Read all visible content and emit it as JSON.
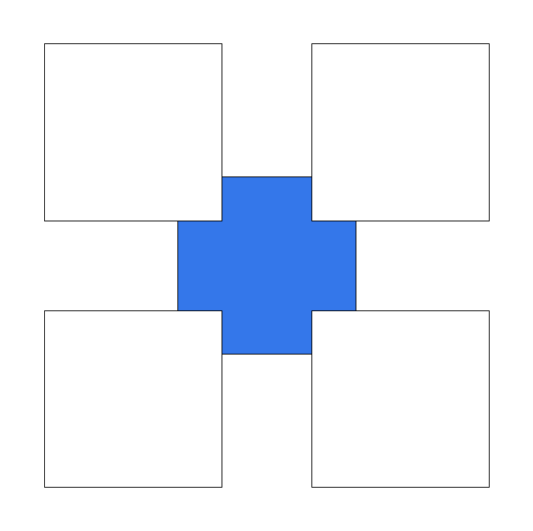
{
  "diagram": {
    "colors": {
      "background": "#ffffff",
      "center_fill": "#3477ea",
      "square_fill": "#ffffff",
      "stroke": "#000000"
    },
    "shapes": [
      {
        "name": "center-square",
        "kind": "filled-square"
      },
      {
        "name": "top-left-square",
        "kind": "outlined-square"
      },
      {
        "name": "top-right-square",
        "kind": "outlined-square"
      },
      {
        "name": "bottom-left-square",
        "kind": "outlined-square"
      },
      {
        "name": "bottom-right-square",
        "kind": "outlined-square"
      }
    ]
  }
}
